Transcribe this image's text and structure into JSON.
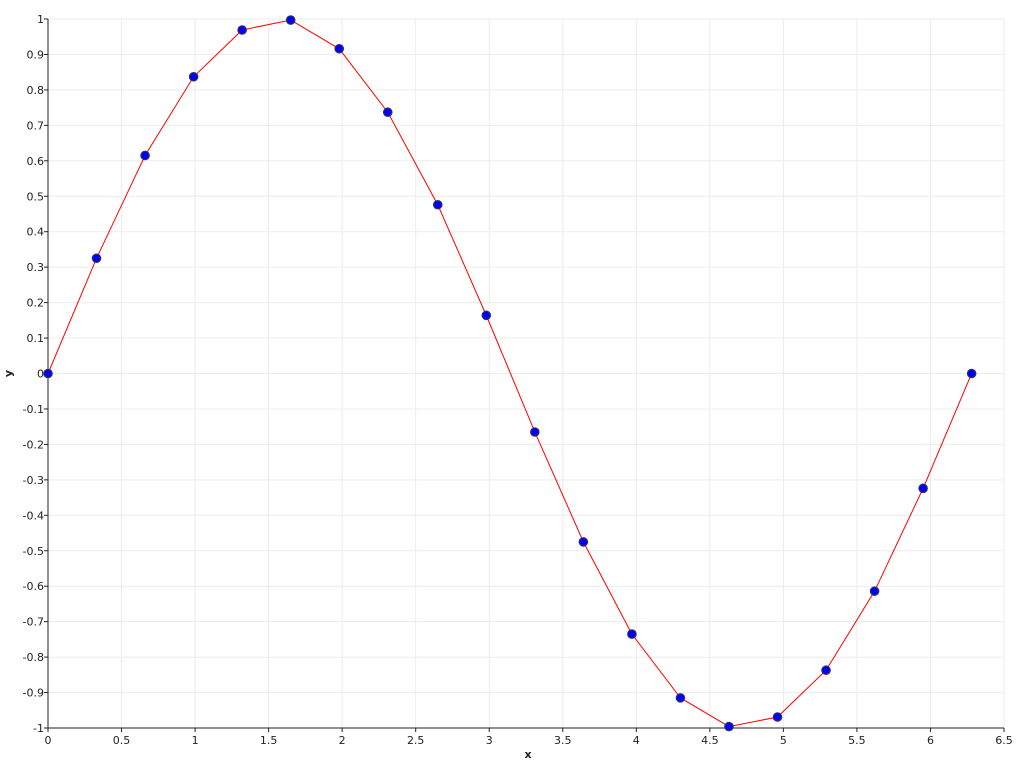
{
  "chart_data": {
    "type": "line",
    "title": "",
    "xlabel": "x",
    "ylabel": "y",
    "xlim": [
      0,
      6.5
    ],
    "ylim": [
      -1,
      1
    ],
    "x_ticks": [
      0,
      0.5,
      1,
      1.5,
      2,
      2.5,
      3,
      3.5,
      4,
      4.5,
      5,
      5.5,
      6,
      6.5
    ],
    "y_ticks": [
      -1,
      -0.9,
      -0.8,
      -0.7,
      -0.6,
      -0.5,
      -0.4,
      -0.3,
      -0.2,
      -0.1,
      0,
      0.1,
      0.2,
      0.3,
      0.4,
      0.5,
      0.6,
      0.7,
      0.8,
      0.9,
      1
    ],
    "grid": true,
    "legend": "none",
    "colors": {
      "line": "#ff0000",
      "marker_fill": "#0000ff",
      "marker_edge": "#303060",
      "grid": "#ececec",
      "axis": "#222222"
    },
    "series": [
      {
        "x": [
          0,
          0.33,
          0.66,
          0.99,
          1.32,
          1.65,
          1.98,
          2.31,
          2.65,
          2.98,
          3.31,
          3.64,
          3.97,
          4.3,
          4.63,
          4.96,
          5.29,
          5.62,
          5.95,
          6.28
        ],
        "y": [
          0,
          0.325,
          0.615,
          0.837,
          0.969,
          0.997,
          0.916,
          0.737,
          0.476,
          0.164,
          -0.165,
          -0.475,
          -0.735,
          -0.915,
          -0.996,
          -0.969,
          -0.837,
          -0.614,
          -0.324,
          0
        ]
      }
    ]
  }
}
